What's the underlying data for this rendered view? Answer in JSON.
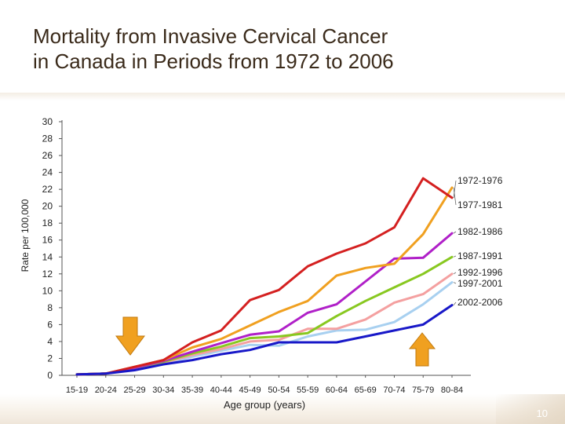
{
  "slide": {
    "title_line1": "Mortality from Invasive Cervical Cancer",
    "title_line2": "in Canada in Periods from 1972 to 2006",
    "page_number": "10"
  },
  "colors": {
    "title": "#3a2a1a",
    "arrow": "#f0a020",
    "arrow_stroke": "#c07a10"
  },
  "chart_data": {
    "type": "line",
    "title": "Mortality from Invasive Cervical Cancer in Canada in Periods from 1972 to 2006",
    "xlabel": "Age group (years)",
    "ylabel": "Rate per 100,000",
    "ylim": [
      0,
      30
    ],
    "yticks": [
      0,
      2,
      4,
      6,
      8,
      10,
      12,
      14,
      16,
      18,
      20,
      22,
      24,
      26,
      28,
      30
    ],
    "categories": [
      "15-19",
      "20-24",
      "25-29",
      "30-34",
      "35-39",
      "40-44",
      "45-49",
      "50-54",
      "55-59",
      "60-64",
      "65-69",
      "70-74",
      "75-79",
      "80-84"
    ],
    "grid": false,
    "legend": "right-end labels",
    "series": [
      {
        "name": "1972-1976",
        "color": "#d42020",
        "values": [
          0.1,
          0.2,
          1.0,
          1.8,
          3.9,
          5.3,
          8.9,
          10.1,
          12.9,
          14.4,
          15.6,
          17.5,
          23.3,
          21.0
        ]
      },
      {
        "name": "1977-1981",
        "color": "#f0a020",
        "values": [
          0.1,
          0.2,
          1.0,
          1.8,
          3.3,
          4.3,
          5.9,
          7.5,
          8.8,
          11.8,
          12.7,
          13.2,
          16.7,
          22.2
        ]
      },
      {
        "name": "1982-1986",
        "color": "#b020c8",
        "values": [
          0.1,
          0.2,
          0.9,
          1.7,
          2.8,
          3.8,
          4.8,
          5.2,
          7.4,
          8.4,
          11.1,
          13.8,
          13.9,
          16.8
        ]
      },
      {
        "name": "1987-1991",
        "color": "#88c820",
        "values": [
          0.1,
          0.2,
          0.9,
          1.6,
          2.6,
          3.4,
          4.4,
          4.6,
          5.0,
          7.0,
          8.8,
          10.4,
          12.0,
          14.0
        ]
      },
      {
        "name": "1992-1996",
        "color": "#f4a0a0",
        "values": [
          0.1,
          0.2,
          0.8,
          1.5,
          2.4,
          3.1,
          4.0,
          4.2,
          5.5,
          5.5,
          6.6,
          8.6,
          9.6,
          12.0
        ]
      },
      {
        "name": "1997-2001",
        "color": "#a8d0f0",
        "values": [
          0.1,
          0.2,
          0.7,
          1.4,
          2.2,
          2.9,
          3.6,
          3.5,
          4.6,
          5.3,
          5.4,
          6.3,
          8.4,
          11.0
        ]
      },
      {
        "name": "2002-2006",
        "color": "#1818c8",
        "values": [
          0.1,
          0.2,
          0.6,
          1.3,
          1.8,
          2.5,
          3.0,
          3.9,
          3.9,
          3.9,
          4.6,
          5.3,
          6.0,
          8.3
        ]
      }
    ]
  }
}
